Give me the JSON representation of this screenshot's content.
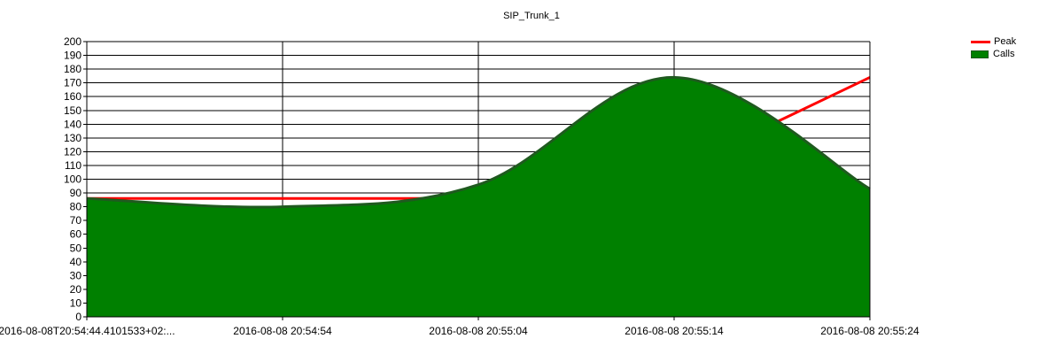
{
  "chart_data": {
    "type": "area",
    "title": "SIP_Trunk_1",
    "xlabel": "",
    "ylabel": "",
    "ylim": [
      0,
      200
    ],
    "yticks": [
      0,
      10,
      20,
      30,
      40,
      50,
      60,
      70,
      80,
      90,
      100,
      110,
      120,
      130,
      140,
      150,
      160,
      170,
      180,
      190,
      200
    ],
    "x": [
      "2016-08-08T20:54:44.4101533+02:...",
      "2016-08-08 20:54:54",
      "2016-08-08 20:55:04",
      "2016-08-08 20:55:14",
      "2016-08-08 20:55:24"
    ],
    "xlim_seconds": [
      0,
      40
    ],
    "grid": true,
    "legend_position": "top-right",
    "series": [
      {
        "name": "Peak",
        "kind": "line",
        "color": "#ff0000",
        "points": [
          [
            0,
            86
          ],
          [
            10,
            86
          ],
          [
            20,
            86
          ],
          [
            30,
            86
          ],
          [
            35,
            140
          ],
          [
            40,
            174
          ]
        ]
      },
      {
        "name": "Calls",
        "kind": "area",
        "color": "#008000",
        "line_color": "#1f5a1f",
        "points": [
          [
            0,
            86
          ],
          [
            10,
            80
          ],
          [
            20,
            96
          ],
          [
            30,
            174
          ],
          [
            40,
            93
          ]
        ]
      }
    ]
  }
}
